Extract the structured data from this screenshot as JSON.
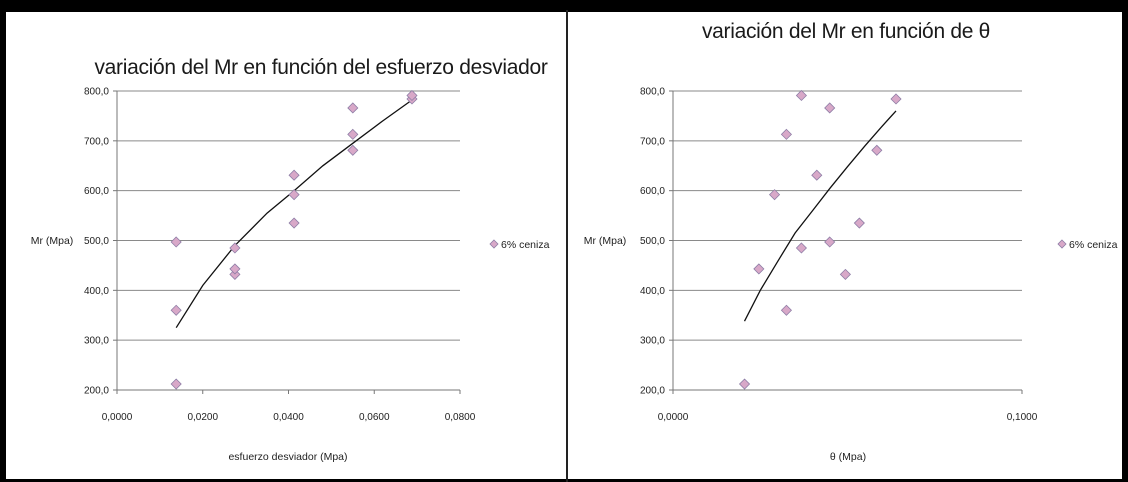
{
  "chart_data": [
    {
      "type": "scatter",
      "title": "variación del Mr en función del esfuerzo desviador",
      "xlabel": "esfuerzo desviador (Mpa)",
      "ylabel": "Mr (Mpa)",
      "xlim": [
        0,
        0.08
      ],
      "ylim": [
        200,
        800
      ],
      "xticks": [
        "0,0000",
        "0,0200",
        "0,0400",
        "0,0600",
        "0,0800"
      ],
      "yticks": [
        "200,0",
        "300,0",
        "400,0",
        "500,0",
        "600,0",
        "700,0",
        "800,0"
      ],
      "grid": "horizontal",
      "legend_position": "right",
      "marker_color": "#d8a8c8",
      "marker_stroke": "#8e7ea6",
      "series": [
        {
          "name": "6% ceniza",
          "x": [
            0.0138,
            0.0138,
            0.0138,
            0.0275,
            0.0275,
            0.0275,
            0.0413,
            0.0413,
            0.0413,
            0.055,
            0.055,
            0.055,
            0.0688,
            0.0688
          ],
          "y": [
            212,
            360,
            497,
            432,
            443,
            485,
            535,
            592,
            631,
            681,
            713,
            766,
            784,
            791
          ]
        }
      ],
      "trendline": {
        "type": "power",
        "x": [
          0.0138,
          0.02,
          0.0275,
          0.035,
          0.0413,
          0.048,
          0.055,
          0.062,
          0.0688
        ],
        "y": [
          325,
          410,
          490,
          555,
          600,
          650,
          695,
          740,
          782
        ]
      }
    },
    {
      "type": "scatter",
      "title": "variación del Mr en función de θ",
      "xlabel": "θ (Mpa)",
      "ylabel": "Mr (Mpa)",
      "xlim": [
        0,
        0.1
      ],
      "ylim": [
        200,
        800
      ],
      "xticks": [
        "0,0000",
        "0,1000"
      ],
      "yticks": [
        "200,0",
        "300,0",
        "400,0",
        "500,0",
        "600,0",
        "700,0",
        "800,0"
      ],
      "grid": "horizontal",
      "legend_position": "right",
      "marker_color": "#d8a8c8",
      "marker_stroke": "#8e7ea6",
      "series": [
        {
          "name": "6% ceniza",
          "x": [
            0.0205,
            0.0246,
            0.0291,
            0.0325,
            0.0325,
            0.0368,
            0.0368,
            0.0412,
            0.0449,
            0.0449,
            0.0494,
            0.0534,
            0.0584,
            0.0639
          ],
          "y": [
            212,
            443,
            592,
            360,
            713,
            791,
            485,
            631,
            497,
            766,
            432,
            535,
            681,
            784
          ]
        }
      ],
      "trendline": {
        "type": "power",
        "x": [
          0.0205,
          0.025,
          0.03,
          0.035,
          0.04,
          0.045,
          0.05,
          0.055,
          0.06,
          0.0639
        ],
        "y": [
          338,
          400,
          458,
          515,
          560,
          605,
          648,
          690,
          730,
          760
        ]
      }
    }
  ]
}
